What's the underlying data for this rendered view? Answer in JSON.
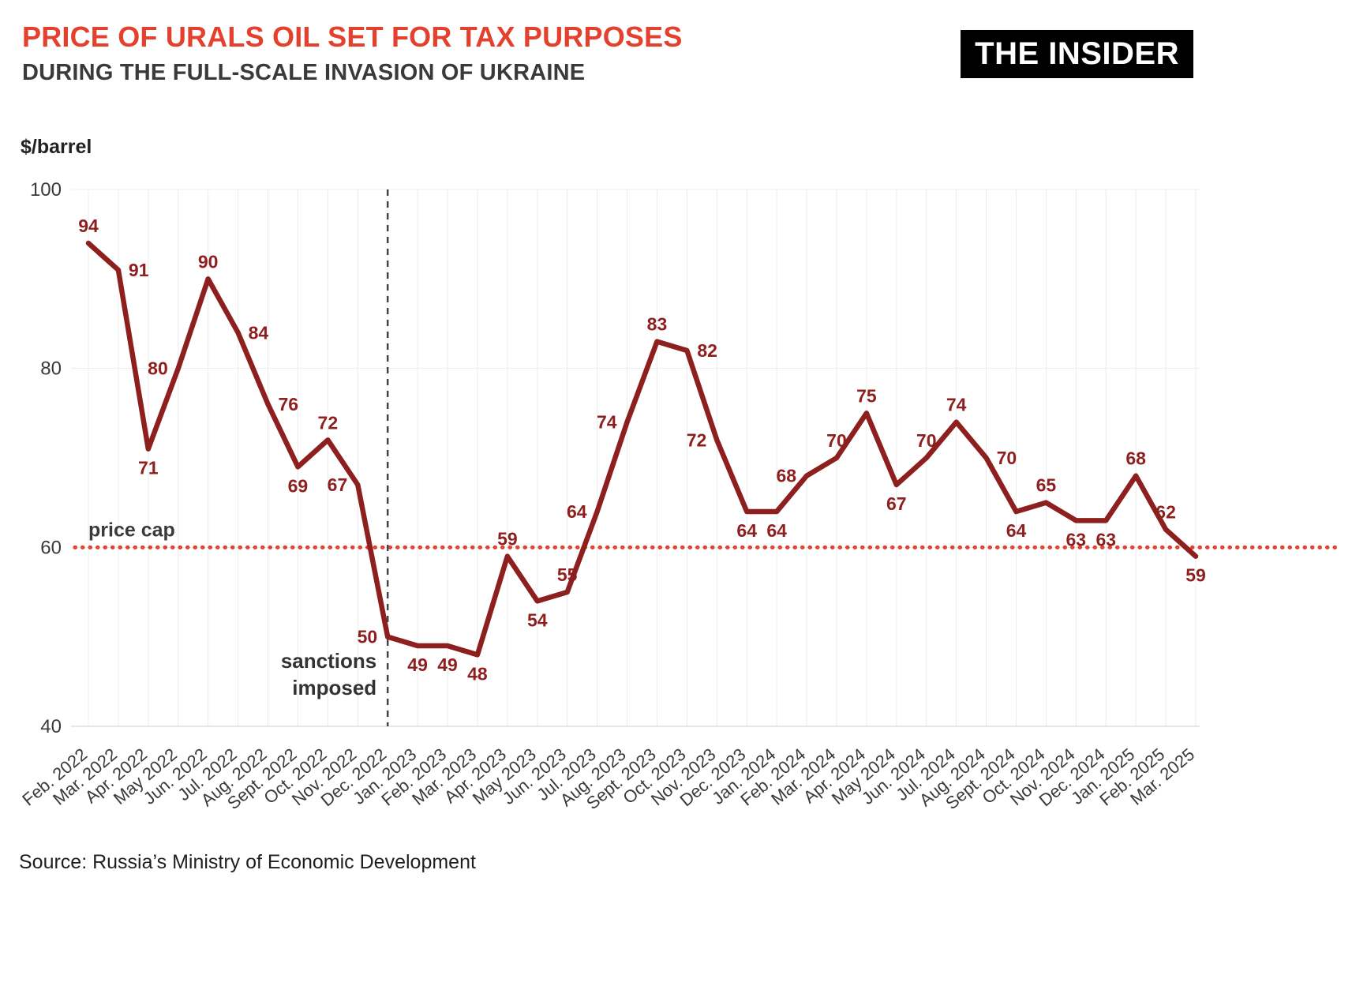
{
  "header": {
    "title_line1": "PRICE OF URALS OIL SET FOR TAX PURPOSES",
    "title_line2": "DURING THE FULL-SCALE INVASION OF UKRAINE",
    "logo": "THE INSIDER"
  },
  "source": "Source: Russia’s Ministry of Economic Development",
  "chart_data": {
    "type": "line",
    "title": "Price of Urals oil set for tax purposes during the full-scale invasion of Ukraine",
    "ylabel": "$/barrel",
    "xlabel": "",
    "ylim": [
      40,
      100
    ],
    "yticks": [
      40,
      60,
      80,
      100
    ],
    "grid": "vertical-monthly",
    "legend": "none",
    "categories": [
      "Feb. 2022",
      "Mar. 2022",
      "Apr. 2022",
      "May 2022",
      "Jun. 2022",
      "Jul. 2022",
      "Aug. 2022",
      "Sept. 2022",
      "Oct. 2022",
      "Nov. 2022",
      "Dec. 2022",
      "Jan. 2023",
      "Feb. 2023",
      "Mar. 2023",
      "Apr. 2023",
      "May 2023",
      "Jun. 2023",
      "Jul. 2023",
      "Aug. 2023",
      "Sept. 2023",
      "Oct. 2023",
      "Nov. 2023",
      "Dec. 2023",
      "Jan. 2024",
      "Feb. 2024",
      "Mar. 2024",
      "Apr. 2024",
      "May 2024",
      "Jun. 2024",
      "Jul. 2024",
      "Aug. 2024",
      "Sept. 2024",
      "Oct. 2024",
      "Nov. 2024",
      "Dec. 2024",
      "Jan. 2025",
      "Feb. 2025",
      "Mar. 2025"
    ],
    "values": [
      94,
      91,
      71,
      80,
      90,
      84,
      76,
      69,
      72,
      67,
      50,
      49,
      49,
      48,
      59,
      54,
      55,
      64,
      74,
      83,
      82,
      72,
      64,
      64,
      68,
      70,
      75,
      67,
      70,
      74,
      70,
      64,
      65,
      63,
      63,
      68,
      62,
      59
    ],
    "label_placements": [
      "above",
      "right",
      "below",
      "left",
      "above",
      "right",
      "right",
      "below",
      "above",
      "left",
      "left",
      "below",
      "below",
      "below",
      "above",
      "below",
      "above",
      "left",
      "left",
      "above",
      "right",
      "left",
      "below",
      "below",
      "left",
      "above",
      "above",
      "below",
      "above",
      "above",
      "right",
      "below",
      "above",
      "below",
      "below",
      "above",
      "above",
      "below"
    ],
    "price_cap": {
      "value": 60,
      "label": "price cap"
    },
    "sanctions_line": {
      "index": 10,
      "label_line1": "sanctions",
      "label_line2": "imposed"
    },
    "colors": {
      "line": "#8e1f1f",
      "price_cap": "#e4402e",
      "grid": "#ececec",
      "baseline": "#cfcfcf",
      "axis_text": "#3a3a3a",
      "annotation": "#333333"
    }
  }
}
